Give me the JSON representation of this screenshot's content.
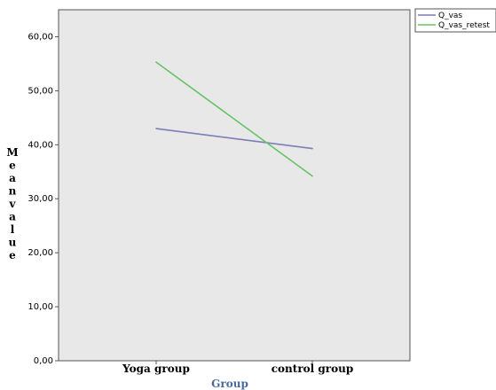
{
  "chart_data": {
    "type": "line",
    "categories": [
      "Yoga group",
      "control group"
    ],
    "series": [
      {
        "name": "Q_vas",
        "values": [
          43.0,
          39.3
        ],
        "color": "#7b7fb5"
      },
      {
        "name": "Q_vas_retest",
        "values": [
          55.3,
          34.2
        ],
        "color": "#66c266"
      }
    ],
    "xlabel": "Group",
    "ylabel": "Mean value",
    "ylim": [
      0,
      65
    ],
    "yticks": [
      "0,00",
      "10,00",
      "20,00",
      "30,00",
      "40,00",
      "50,00",
      "60,00"
    ],
    "ytick_values": [
      0,
      10,
      20,
      30,
      40,
      50,
      60
    ],
    "grid": false,
    "legend_position": "top-right",
    "plot_background": "#e8e8e8"
  }
}
